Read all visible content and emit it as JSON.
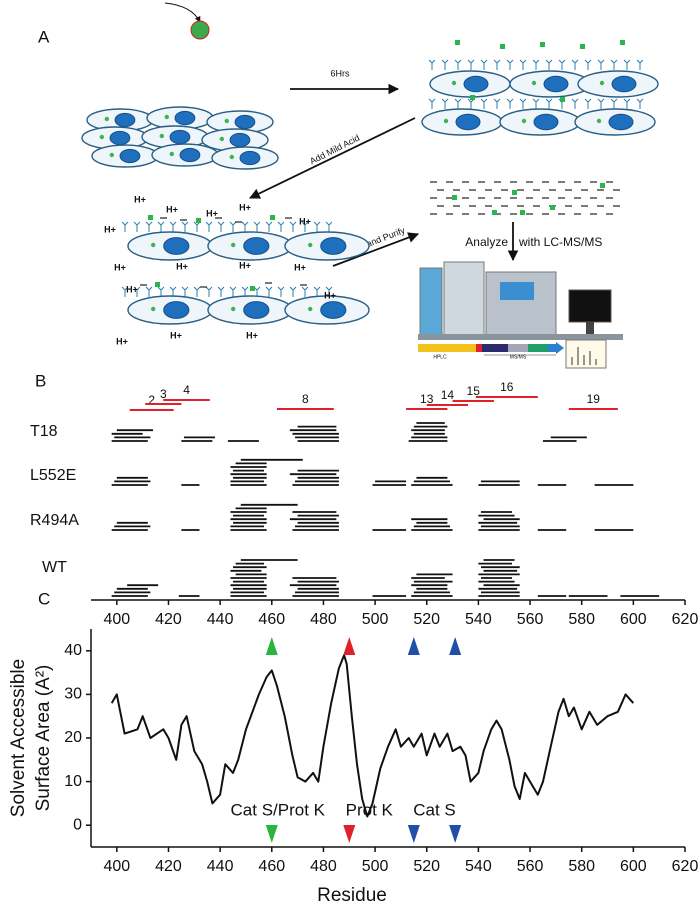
{
  "panel_a": {
    "label": "A",
    "step_1": "6Hrs",
    "step_2": "Add Mild Acid",
    "step_3": "Collect and Purify",
    "step_4a": "Analyze",
    "step_4b": "with LC-MS/MS",
    "h_plus": [
      "H+",
      "H+",
      "H+",
      "H+",
      "H+",
      "H+",
      "H+",
      "H+",
      "H+",
      "H+",
      "H+",
      "H+",
      "H+",
      "H+",
      "H+"
    ],
    "hplc": "HPLC",
    "msms": "MS/MS"
  },
  "panel_b": {
    "label": "B",
    "xlim": [
      390,
      620
    ],
    "xticks": [
      400,
      420,
      440,
      460,
      480,
      500,
      520,
      540,
      560,
      580,
      600,
      620
    ],
    "reference_peptides": [
      {
        "label": "2",
        "start": 405,
        "end": 422
      },
      {
        "label": "3",
        "start": 411,
        "end": 425
      },
      {
        "label": "4",
        "start": 418,
        "end": 436
      },
      {
        "label": "8",
        "start": 462,
        "end": 484
      },
      {
        "label": "13",
        "start": 512,
        "end": 528
      },
      {
        "label": "14",
        "start": 520,
        "end": 536
      },
      {
        "label": "15",
        "start": 530,
        "end": 546
      },
      {
        "label": "16",
        "start": 539,
        "end": 563
      },
      {
        "label": "19",
        "start": 575,
        "end": 594
      }
    ],
    "groups": [
      {
        "name": "T18",
        "peptides": [
          [
            398,
            412
          ],
          [
            399,
            413
          ],
          [
            398,
            410
          ],
          [
            400,
            414
          ],
          [
            425,
            437
          ],
          [
            426,
            438
          ],
          [
            443,
            455
          ],
          [
            470,
            486
          ],
          [
            469,
            486
          ],
          [
            468,
            486
          ],
          [
            467,
            485
          ],
          [
            470,
            485
          ],
          [
            513,
            528
          ],
          [
            514,
            528
          ],
          [
            515,
            527
          ],
          [
            514,
            527
          ],
          [
            515,
            528
          ],
          [
            516,
            527
          ],
          [
            565,
            578
          ],
          [
            568,
            582
          ]
        ]
      },
      {
        "name": "L552E",
        "peptides": [
          [
            398,
            412
          ],
          [
            399,
            413
          ],
          [
            400,
            412
          ],
          [
            425,
            432
          ],
          [
            444,
            458
          ],
          [
            444,
            457
          ],
          [
            445,
            458
          ],
          [
            444,
            458
          ],
          [
            445,
            457
          ],
          [
            444,
            458
          ],
          [
            446,
            458
          ],
          [
            448,
            472
          ],
          [
            468,
            486
          ],
          [
            469,
            486
          ],
          [
            470,
            486
          ],
          [
            467,
            485
          ],
          [
            470,
            486
          ],
          [
            499,
            512
          ],
          [
            500,
            512
          ],
          [
            514,
            530
          ],
          [
            515,
            529
          ],
          [
            516,
            528
          ],
          [
            540,
            556
          ],
          [
            541,
            556
          ],
          [
            563,
            574
          ],
          [
            585,
            600
          ]
        ]
      },
      {
        "name": "R494A",
        "peptides": [
          [
            398,
            412
          ],
          [
            399,
            413
          ],
          [
            400,
            412
          ],
          [
            425,
            432
          ],
          [
            444,
            458
          ],
          [
            444,
            457
          ],
          [
            445,
            458
          ],
          [
            444,
            458
          ],
          [
            445,
            457
          ],
          [
            444,
            458
          ],
          [
            446,
            458
          ],
          [
            448,
            470
          ],
          [
            468,
            486
          ],
          [
            469,
            486
          ],
          [
            470,
            486
          ],
          [
            467,
            485
          ],
          [
            470,
            486
          ],
          [
            468,
            485
          ],
          [
            499,
            512
          ],
          [
            514,
            530
          ],
          [
            515,
            529
          ],
          [
            516,
            528
          ],
          [
            514,
            528
          ],
          [
            540,
            556
          ],
          [
            541,
            556
          ],
          [
            540,
            555
          ],
          [
            542,
            556
          ],
          [
            540,
            554
          ],
          [
            541,
            553
          ],
          [
            563,
            574
          ],
          [
            585,
            600
          ]
        ]
      },
      {
        "name": "WT",
        "peptides": [
          [
            398,
            412
          ],
          [
            399,
            413
          ],
          [
            400,
            412
          ],
          [
            404,
            416
          ],
          [
            424,
            432
          ],
          [
            444,
            458
          ],
          [
            444,
            457
          ],
          [
            445,
            458
          ],
          [
            444,
            458
          ],
          [
            445,
            457
          ],
          [
            444,
            458
          ],
          [
            446,
            458
          ],
          [
            444,
            456
          ],
          [
            445,
            458
          ],
          [
            446,
            457
          ],
          [
            448,
            470
          ],
          [
            468,
            486
          ],
          [
            469,
            486
          ],
          [
            470,
            486
          ],
          [
            467,
            485
          ],
          [
            470,
            486
          ],
          [
            468,
            485
          ],
          [
            499,
            512
          ],
          [
            514,
            530
          ],
          [
            515,
            529
          ],
          [
            516,
            528
          ],
          [
            514,
            528
          ],
          [
            515,
            530
          ],
          [
            514,
            527
          ],
          [
            516,
            530
          ],
          [
            540,
            556
          ],
          [
            541,
            556
          ],
          [
            540,
            555
          ],
          [
            542,
            556
          ],
          [
            540,
            554
          ],
          [
            541,
            553
          ],
          [
            540,
            556
          ],
          [
            542,
            555
          ],
          [
            541,
            556
          ],
          [
            540,
            553
          ],
          [
            542,
            554
          ],
          [
            563,
            574
          ],
          [
            575,
            590
          ],
          [
            595,
            610
          ]
        ]
      }
    ]
  },
  "chart_data": {
    "type": "line",
    "label": "C",
    "x": [
      398,
      400,
      403,
      408,
      410,
      413,
      418,
      420,
      423,
      425,
      427,
      430,
      433,
      435,
      437,
      440,
      442,
      445,
      447,
      450,
      455,
      458,
      460,
      462,
      465,
      468,
      470,
      473,
      476,
      478,
      480,
      483,
      486,
      488,
      489,
      491,
      493,
      495,
      497,
      499,
      502,
      505,
      508,
      510,
      513,
      515,
      518,
      520,
      523,
      525,
      528,
      530,
      533,
      535,
      537,
      540,
      542,
      545,
      547,
      549,
      552,
      554,
      556,
      558,
      560,
      563,
      565,
      568,
      571,
      573,
      575,
      577,
      580,
      583,
      586,
      590,
      594,
      597,
      600
    ],
    "values": [
      28,
      30,
      21,
      22,
      25,
      20,
      22,
      20,
      15,
      23,
      25,
      17,
      14,
      10,
      5,
      7,
      14,
      12,
      15,
      22,
      30,
      34,
      35.5,
      32,
      25,
      16,
      11,
      10,
      12,
      10,
      18,
      28,
      36,
      39,
      37,
      25,
      14,
      6,
      2,
      5,
      13,
      18,
      22,
      18,
      20,
      18,
      21,
      16,
      21,
      18,
      21,
      17,
      18,
      16,
      10,
      12,
      17,
      22,
      24,
      22,
      15,
      9,
      6,
      12,
      10,
      7,
      10,
      18,
      26,
      29,
      25,
      27,
      22,
      26,
      23,
      25,
      26,
      30,
      28
    ],
    "color": "#111111",
    "xlim": [
      390,
      620
    ],
    "ylim": [
      -5,
      45
    ],
    "xticks": [
      400,
      420,
      440,
      460,
      480,
      500,
      520,
      540,
      560,
      580,
      600,
      620
    ],
    "yticks": [
      0,
      10,
      20,
      30,
      40
    ],
    "ylabel": [
      "Solvent Accessible",
      "Surface Area (A²)"
    ],
    "xlabel": "Residue",
    "sites": [
      {
        "label": "Cat S/Prot K",
        "color": "#2bb540",
        "residues": [
          460
        ]
      },
      {
        "label": "Prot K",
        "color": "#e0202a",
        "residues": [
          490
        ]
      },
      {
        "label": "Cat S",
        "color": "#1f4fa8",
        "residues": [
          515,
          531
        ]
      }
    ]
  }
}
